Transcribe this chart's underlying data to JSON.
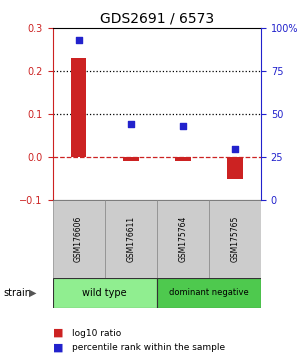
{
  "title": "GDS2691 / 6573",
  "samples": [
    "GSM176606",
    "GSM176611",
    "GSM175764",
    "GSM175765"
  ],
  "log10_ratio": [
    0.23,
    -0.01,
    -0.01,
    -0.05
  ],
  "percentile_rank": [
    93,
    44,
    43,
    30
  ],
  "groups": [
    {
      "label": "wild type",
      "samples": [
        0,
        1
      ],
      "color": "#90ee90"
    },
    {
      "label": "dominant negative",
      "samples": [
        2,
        3
      ],
      "color": "#4ec94e"
    }
  ],
  "bar_color": "#cc2222",
  "dot_color": "#2222cc",
  "ylim_left": [
    -0.1,
    0.3
  ],
  "ylim_right": [
    0,
    100
  ],
  "yticks_left": [
    -0.1,
    0.0,
    0.1,
    0.2,
    0.3
  ],
  "yticks_right": [
    0,
    25,
    50,
    75,
    100
  ],
  "background_color": "#ffffff",
  "label_log10": "log10 ratio",
  "label_percentile": "percentile rank within the sample",
  "strain_label": "strain",
  "gray_box_color": "#cccccc",
  "gray_box_edge": "#888888",
  "title_fontsize": 10,
  "tick_fontsize": 7,
  "sample_fontsize": 5.5
}
